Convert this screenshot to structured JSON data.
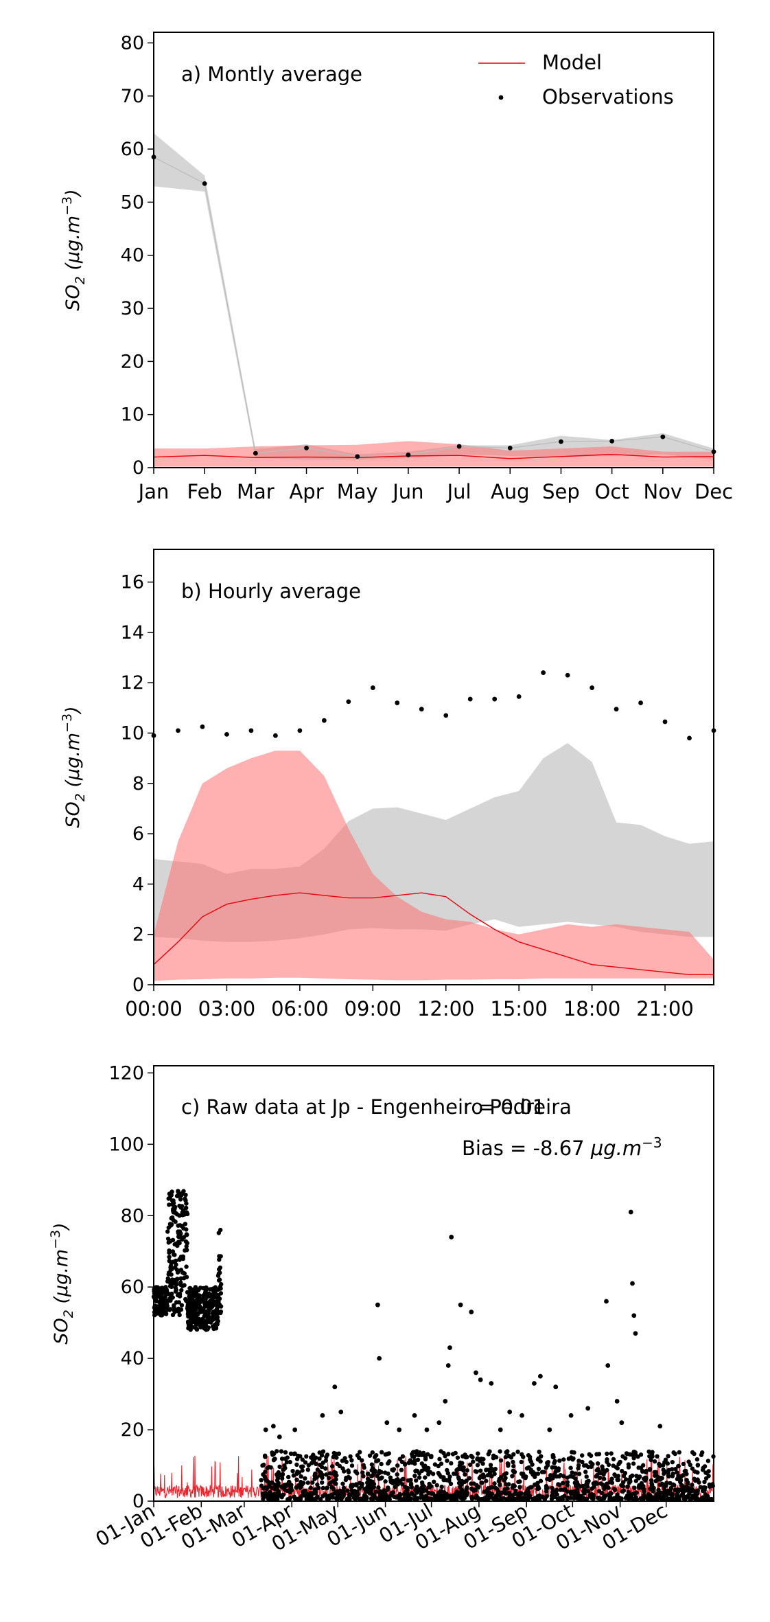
{
  "chart_data": [
    {
      "type": "line",
      "panel_label": "a) Montly average",
      "ylabel": "SO2 (μg.m⁻³)",
      "ylabel_parts": {
        "base": "SO",
        "sub": "2",
        "unit": "(μg.m",
        "sup": "−3",
        "close": ")"
      },
      "ylim": [
        0,
        82
      ],
      "yticks": [
        0,
        10,
        20,
        30,
        40,
        50,
        60,
        70,
        80
      ],
      "categories": [
        "Jan",
        "Feb",
        "Mar",
        "Apr",
        "May",
        "Jun",
        "Jul",
        "Aug",
        "Sep",
        "Oct",
        "Nov",
        "Dec"
      ],
      "legend": {
        "placement": "top-right",
        "model_label": "Model",
        "obs_label": "Observations"
      },
      "model": [
        2.0,
        2.3,
        1.9,
        2.0,
        1.9,
        2.2,
        2.3,
        1.7,
        2.1,
        2.5,
        2.0,
        2.1
      ],
      "model_band_lo": [
        0.2,
        0.2,
        0.2,
        0.2,
        0.2,
        0.2,
        0.2,
        0.2,
        0.2,
        0.2,
        0.2,
        0.2
      ],
      "model_band_hi": [
        3.6,
        3.6,
        4.0,
        4.2,
        4.3,
        5.0,
        4.4,
        3.2,
        3.6,
        4.0,
        3.0,
        3.0
      ],
      "observations": [
        58.5,
        53.5,
        2.7,
        3.7,
        2.1,
        2.4,
        4.0,
        3.7,
        4.9,
        5.0,
        5.8,
        3.0
      ],
      "obs_band_lo": [
        53.0,
        52.0,
        1.8,
        1.5,
        1.5,
        1.8,
        2.5,
        2.2,
        2.0,
        2.2,
        2.5,
        1.5
      ],
      "obs_band_hi": [
        63.0,
        55.0,
        3.5,
        4.4,
        2.5,
        3.0,
        4.2,
        4.2,
        6.0,
        5.2,
        6.5,
        3.6
      ]
    },
    {
      "type": "line",
      "panel_label": "b) Hourly average",
      "ylabel": "SO2 (μg.m⁻³)",
      "ylim": [
        0,
        17.3
      ],
      "yticks": [
        0,
        2,
        4,
        6,
        8,
        10,
        12,
        14,
        16
      ],
      "xticklabels": [
        "00:00",
        "03:00",
        "06:00",
        "09:00",
        "12:00",
        "15:00",
        "18:00",
        "21:00"
      ],
      "x": [
        0,
        1,
        2,
        3,
        4,
        5,
        6,
        7,
        8,
        9,
        10,
        11,
        12,
        13,
        14,
        15,
        16,
        17,
        18,
        19,
        20,
        21,
        22,
        23
      ],
      "model": [
        0.8,
        1.7,
        2.7,
        3.2,
        3.4,
        3.55,
        3.65,
        3.55,
        3.45,
        3.45,
        3.55,
        3.65,
        3.5,
        2.8,
        2.2,
        1.7,
        1.4,
        1.1,
        0.8,
        0.7,
        0.6,
        0.5,
        0.4,
        0.4
      ],
      "model_band_lo": [
        0.15,
        0.2,
        0.22,
        0.25,
        0.25,
        0.28,
        0.28,
        0.25,
        0.22,
        0.2,
        0.18,
        0.18,
        0.2,
        0.2,
        0.22,
        0.22,
        0.25,
        0.25,
        0.25,
        0.25,
        0.25,
        0.25,
        0.25,
        0.25
      ],
      "model_band_hi": [
        2.0,
        5.7,
        8.0,
        8.6,
        9.0,
        9.3,
        9.3,
        8.3,
        6.2,
        4.4,
        3.5,
        2.9,
        2.6,
        2.5,
        2.2,
        2.0,
        2.2,
        2.4,
        2.3,
        2.4,
        2.3,
        2.2,
        2.1,
        1.0
      ],
      "observations": [
        9.9,
        10.1,
        10.25,
        9.95,
        10.1,
        9.9,
        10.1,
        10.5,
        11.25,
        11.8,
        11.2,
        10.95,
        10.7,
        11.35,
        11.35,
        11.45,
        12.4,
        12.3,
        11.8,
        10.95,
        11.2,
        10.45,
        9.8,
        10.1
      ],
      "obs_band_lo": [
        1.9,
        1.85,
        1.75,
        1.7,
        1.7,
        1.75,
        1.85,
        2.0,
        2.2,
        2.25,
        2.2,
        2.2,
        2.15,
        2.4,
        2.6,
        2.3,
        2.4,
        2.5,
        2.4,
        2.3,
        2.1,
        2.0,
        1.9,
        1.9
      ],
      "obs_band_hi": [
        5.0,
        4.9,
        4.8,
        4.4,
        4.6,
        4.6,
        4.7,
        5.4,
        6.5,
        7.0,
        7.05,
        6.8,
        6.55,
        7.0,
        7.45,
        7.7,
        9.0,
        9.6,
        8.85,
        6.45,
        6.35,
        5.9,
        5.6,
        5.7
      ]
    },
    {
      "type": "line",
      "panel_label": "c) Raw data at Jp - Engenheiro Pedreira",
      "stat_r": "r = 0.01",
      "stat_bias": "Bias = -8.67",
      "stat_bias_unit": "μg.m⁻³",
      "ylabel": "SO2 (μg.m⁻³)",
      "ylim": [
        0,
        122
      ],
      "yticks": [
        0,
        20,
        40,
        60,
        80,
        100,
        120
      ],
      "xticklabels": [
        "01-Jan",
        "01-Feb",
        "01-Mar",
        "01-Apr",
        "01-May",
        "01-Jun",
        "01-Jul",
        "01-Aug",
        "01-Sep",
        "01-Oct",
        "01-Nov",
        "01-Dec"
      ],
      "month_start_day": [
        0,
        31,
        59,
        90,
        120,
        151,
        181,
        212,
        243,
        273,
        304,
        334
      ],
      "x_range_days": [
        0,
        365
      ],
      "model_typical": 3.0,
      "model_peak": 13,
      "obs_clusters": [
        {
          "start_day": 0,
          "end_day": 9,
          "min": 52,
          "max": 60
        },
        {
          "start_day": 9,
          "end_day": 22,
          "min": 52,
          "max": 87
        },
        {
          "start_day": 22,
          "end_day": 42,
          "min": 48,
          "max": 60
        },
        {
          "start_day": 42,
          "end_day": 44,
          "min": 52,
          "max": 76
        },
        {
          "start_day": 70,
          "end_day": 365,
          "min": 0.5,
          "max": 14
        }
      ],
      "obs_outliers": [
        [
          73,
          20
        ],
        [
          78,
          21
        ],
        [
          82,
          18
        ],
        [
          92,
          20
        ],
        [
          110,
          24
        ],
        [
          118,
          32
        ],
        [
          122,
          25
        ],
        [
          146,
          55
        ],
        [
          147,
          40
        ],
        [
          152,
          22
        ],
        [
          160,
          20
        ],
        [
          170,
          24
        ],
        [
          178,
          20
        ],
        [
          186,
          22
        ],
        [
          190,
          28
        ],
        [
          192,
          38
        ],
        [
          193,
          43
        ],
        [
          194,
          74
        ],
        [
          200,
          55
        ],
        [
          207,
          53
        ],
        [
          210,
          36
        ],
        [
          213,
          34
        ],
        [
          220,
          33
        ],
        [
          226,
          20
        ],
        [
          232,
          25
        ],
        [
          240,
          24
        ],
        [
          248,
          33
        ],
        [
          252,
          35
        ],
        [
          258,
          20
        ],
        [
          262,
          32
        ],
        [
          272,
          24
        ],
        [
          283,
          26
        ],
        [
          295,
          56
        ],
        [
          296,
          38
        ],
        [
          302,
          28
        ],
        [
          305,
          22
        ],
        [
          311,
          81
        ],
        [
          312,
          61
        ],
        [
          313,
          52
        ],
        [
          314,
          47
        ],
        [
          330,
          21
        ]
      ]
    }
  ]
}
